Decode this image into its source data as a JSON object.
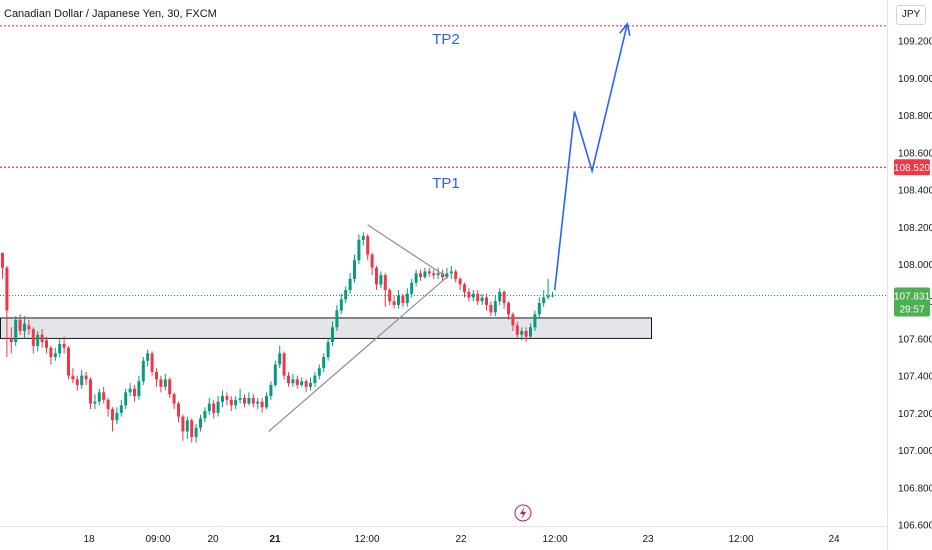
{
  "header": {
    "title": "Canadian Dollar / Japanese Yen, 30, FXCM",
    "currency_button": "JPY"
  },
  "colors": {
    "up": "#089981",
    "down": "#f23645",
    "target_line": "#f23645",
    "projection": "#2962ff",
    "zone_fill": "#dadce0",
    "zone_stroke": "#131722",
    "triangle": "#8a8d96",
    "price_badge": "#4caf50",
    "target_badge": "#f23645",
    "axis_text": "#131722"
  },
  "icons": {
    "bottom_marker": "lightning-icon"
  },
  "chart_data": {
    "type": "candlestick",
    "title": "Canadian Dollar / Japanese Yen, 30, FXCM",
    "symbol": "CADJPY",
    "interval": "30",
    "source": "FXCM",
    "y_unit": "JPY",
    "ylim": [
      106.6,
      109.4
    ],
    "y_ticks": [
      "109.200",
      "109.000",
      "108.800",
      "108.600",
      "108.400",
      "108.200",
      "108.000",
      "107.800",
      "107.600",
      "107.400",
      "107.200",
      "107.000",
      "106.800",
      "106.600"
    ],
    "x_ticks": [
      "18",
      "09:00",
      "20",
      "21",
      "12:00",
      "22",
      "12:00",
      "23",
      "12:00",
      "24"
    ],
    "current_price": {
      "label": "107.831",
      "value": 107.831,
      "countdown": "29:57"
    },
    "targets": [
      {
        "name": "TP2",
        "label": "TP2",
        "price": 109.28
      },
      {
        "name": "TP1",
        "label": "TP1",
        "price": 108.52,
        "badge": "108.520"
      }
    ],
    "support_zone": {
      "low": 107.6,
      "high": 107.71
    },
    "candles": [
      [
        108.06,
        107.98,
        108.06,
        107.92
      ],
      [
        107.98,
        107.75,
        107.99,
        107.5
      ],
      [
        107.6,
        107.58,
        107.66,
        107.52
      ],
      [
        107.58,
        107.7,
        107.72,
        107.56
      ],
      [
        107.7,
        107.64,
        107.73,
        107.62
      ],
      [
        107.64,
        107.68,
        107.72,
        107.6
      ],
      [
        107.67,
        107.65,
        107.7,
        107.62
      ],
      [
        107.65,
        107.56,
        107.66,
        107.52
      ],
      [
        107.56,
        107.62,
        107.64,
        107.53
      ],
      [
        107.62,
        107.58,
        107.65,
        107.55
      ],
      [
        107.59,
        107.55,
        107.61,
        107.52
      ],
      [
        107.55,
        107.5,
        107.56,
        107.46
      ],
      [
        107.5,
        107.52,
        107.55,
        107.48
      ],
      [
        107.52,
        107.57,
        107.6,
        107.5
      ],
      [
        107.57,
        107.55,
        107.61,
        107.52
      ],
      [
        107.55,
        107.4,
        107.56,
        107.38
      ],
      [
        107.4,
        107.38,
        107.44,
        107.36
      ],
      [
        107.38,
        107.35,
        107.4,
        107.32
      ],
      [
        107.35,
        107.4,
        107.43,
        107.33
      ],
      [
        107.4,
        107.38,
        107.42,
        107.35
      ],
      [
        107.38,
        107.25,
        107.39,
        107.22
      ],
      [
        107.25,
        107.26,
        107.3,
        107.22
      ],
      [
        107.26,
        107.31,
        107.33,
        107.24
      ],
      [
        107.31,
        107.27,
        107.34,
        107.25
      ],
      [
        107.27,
        107.22,
        107.28,
        107.18
      ],
      [
        107.22,
        107.16,
        107.23,
        107.1
      ],
      [
        107.16,
        107.2,
        107.23,
        107.14
      ],
      [
        107.2,
        107.24,
        107.27,
        107.18
      ],
      [
        107.24,
        107.31,
        107.33,
        107.22
      ],
      [
        107.31,
        107.33,
        107.36,
        107.29
      ],
      [
        107.33,
        107.29,
        107.35,
        107.26
      ],
      [
        107.29,
        107.37,
        107.4,
        107.27
      ],
      [
        107.37,
        107.48,
        107.5,
        107.35
      ],
      [
        107.48,
        107.52,
        107.54,
        107.45
      ],
      [
        107.52,
        107.42,
        107.53,
        107.4
      ],
      [
        107.42,
        107.38,
        107.44,
        107.34
      ],
      [
        107.38,
        107.34,
        107.4,
        107.31
      ],
      [
        107.34,
        107.38,
        107.41,
        107.32
      ],
      [
        107.38,
        107.3,
        107.39,
        107.28
      ],
      [
        107.3,
        107.25,
        107.31,
        107.22
      ],
      [
        107.25,
        107.18,
        107.26,
        107.15
      ],
      [
        107.18,
        107.1,
        107.19,
        107.05
      ],
      [
        107.1,
        107.16,
        107.18,
        107.06
      ],
      [
        107.16,
        107.07,
        107.17,
        107.04
      ],
      [
        107.07,
        107.12,
        107.14,
        107.04
      ],
      [
        107.12,
        107.17,
        107.19,
        107.1
      ],
      [
        107.17,
        107.21,
        107.23,
        107.15
      ],
      [
        107.21,
        107.25,
        107.28,
        107.19
      ],
      [
        107.25,
        107.2,
        107.27,
        107.17
      ],
      [
        107.2,
        107.26,
        107.29,
        107.18
      ],
      [
        107.26,
        107.29,
        107.32,
        107.23
      ],
      [
        107.29,
        107.27,
        107.31,
        107.24
      ],
      [
        107.27,
        107.24,
        107.29,
        107.21
      ],
      [
        107.24,
        107.27,
        107.29,
        107.22
      ],
      [
        107.27,
        107.28,
        107.33,
        107.25
      ],
      [
        107.28,
        107.25,
        107.3,
        107.23
      ],
      [
        107.25,
        107.28,
        107.31,
        107.24
      ],
      [
        107.28,
        107.25,
        107.3,
        107.23
      ],
      [
        107.25,
        107.26,
        107.28,
        107.22
      ],
      [
        107.26,
        107.23,
        107.28,
        107.2
      ],
      [
        107.23,
        107.29,
        107.31,
        107.22
      ],
      [
        107.29,
        107.35,
        107.37,
        107.27
      ],
      [
        107.35,
        107.46,
        107.48,
        107.34
      ],
      [
        107.46,
        107.52,
        107.56,
        107.44
      ],
      [
        107.52,
        107.4,
        107.53,
        107.38
      ],
      [
        107.4,
        107.36,
        107.42,
        107.34
      ],
      [
        107.36,
        107.38,
        107.41,
        107.34
      ],
      [
        107.38,
        107.35,
        107.4,
        107.33
      ],
      [
        107.35,
        107.37,
        107.39,
        107.34
      ],
      [
        107.37,
        107.34,
        107.38,
        107.31
      ],
      [
        107.34,
        107.36,
        107.39,
        107.32
      ],
      [
        107.36,
        107.4,
        107.42,
        107.34
      ],
      [
        107.4,
        107.44,
        107.46,
        107.38
      ],
      [
        107.44,
        107.5,
        107.52,
        107.42
      ],
      [
        107.5,
        107.58,
        107.6,
        107.48
      ],
      [
        107.58,
        107.66,
        107.69,
        107.56
      ],
      [
        107.66,
        107.75,
        107.78,
        107.64
      ],
      [
        107.75,
        107.81,
        107.84,
        107.73
      ],
      [
        107.81,
        107.86,
        107.88,
        107.79
      ],
      [
        107.86,
        107.92,
        107.95,
        107.84
      ],
      [
        107.92,
        108.02,
        108.05,
        107.9
      ],
      [
        108.02,
        108.13,
        108.16,
        108.0
      ],
      [
        108.13,
        108.15,
        108.17,
        108.1
      ],
      [
        108.15,
        108.05,
        108.16,
        108.02
      ],
      [
        108.05,
        107.98,
        108.06,
        107.94
      ],
      [
        107.98,
        107.89,
        107.99,
        107.86
      ],
      [
        107.89,
        107.94,
        107.96,
        107.87
      ],
      [
        107.94,
        107.86,
        107.95,
        107.77
      ],
      [
        107.86,
        107.8,
        107.87,
        107.78
      ],
      [
        107.8,
        107.78,
        107.83,
        107.76
      ],
      [
        107.78,
        107.83,
        107.86,
        107.76
      ],
      [
        107.83,
        107.79,
        107.84,
        107.77
      ],
      [
        107.79,
        107.84,
        107.87,
        107.77
      ],
      [
        107.84,
        107.9,
        107.92,
        107.82
      ],
      [
        107.9,
        107.95,
        107.97,
        107.88
      ],
      [
        107.95,
        107.93,
        107.97,
        107.91
      ],
      [
        107.93,
        107.96,
        107.98,
        107.92
      ],
      [
        107.96,
        107.95,
        107.98,
        107.93
      ],
      [
        107.95,
        107.94,
        107.97,
        107.92
      ],
      [
        107.94,
        107.95,
        107.98,
        107.92
      ],
      [
        107.95,
        107.93,
        107.97,
        107.91
      ],
      [
        107.93,
        107.95,
        107.98,
        107.92
      ],
      [
        107.95,
        107.96,
        107.99,
        107.92
      ],
      [
        107.96,
        107.92,
        107.97,
        107.9
      ],
      [
        107.92,
        107.89,
        107.93,
        107.86
      ],
      [
        107.89,
        107.85,
        107.9,
        107.82
      ],
      [
        107.85,
        107.82,
        107.87,
        107.8
      ],
      [
        107.82,
        107.84,
        107.86,
        107.8
      ],
      [
        107.84,
        107.8,
        107.86,
        107.78
      ],
      [
        107.8,
        107.82,
        107.84,
        107.78
      ],
      [
        107.82,
        107.78,
        107.84,
        107.75
      ],
      [
        107.78,
        107.74,
        107.8,
        107.72
      ],
      [
        107.74,
        107.8,
        107.83,
        107.72
      ],
      [
        107.8,
        107.85,
        107.87,
        107.78
      ],
      [
        107.85,
        107.79,
        107.86,
        107.76
      ],
      [
        107.79,
        107.73,
        107.8,
        107.7
      ],
      [
        107.73,
        107.67,
        107.74,
        107.64
      ],
      [
        107.67,
        107.62,
        107.69,
        107.6
      ],
      [
        107.62,
        107.64,
        107.66,
        107.59
      ],
      [
        107.64,
        107.61,
        107.66,
        107.58
      ],
      [
        107.61,
        107.66,
        107.68,
        107.6
      ],
      [
        107.66,
        107.73,
        107.75,
        107.64
      ],
      [
        107.73,
        107.79,
        107.82,
        107.71
      ],
      [
        107.79,
        107.82,
        107.86,
        107.77
      ],
      [
        107.82,
        107.83,
        107.92,
        107.81
      ],
      [
        107.83,
        107.831,
        107.85,
        107.82
      ]
    ],
    "projection_path": [
      {
        "candle_index": 125.5,
        "price": 107.86
      },
      {
        "candle_index": 130.0,
        "price": 108.82
      },
      {
        "candle_index": 134.0,
        "price": 108.5
      },
      {
        "candle_index": 142.0,
        "price": 109.29
      }
    ],
    "triangle_lines": [
      [
        {
          "candle_index": 60.5,
          "price": 107.1
        },
        {
          "candle_index": 101.0,
          "price": 107.93
        }
      ],
      [
        {
          "candle_index": 83.0,
          "price": 108.21
        },
        {
          "candle_index": 101.0,
          "price": 107.93
        }
      ]
    ],
    "zone_span": {
      "start_index": 0,
      "end_index": 147.5
    }
  }
}
